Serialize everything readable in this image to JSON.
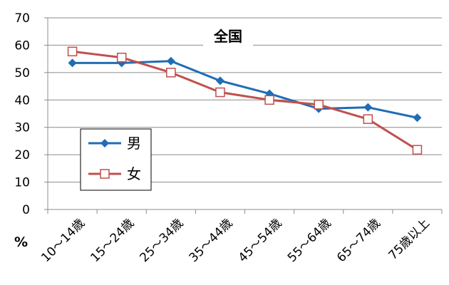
{
  "chart_data": {
    "type": "line",
    "title": "全国",
    "ylabel": "%",
    "xlabel": "",
    "categories": [
      "10～14歳",
      "15～24歳",
      "25～34歳",
      "35～44歳",
      "45～54歳",
      "55～64歳",
      "65～74歳",
      "75歳以上"
    ],
    "ylim": [
      0,
      70
    ],
    "yticks": [
      0,
      10,
      20,
      30,
      40,
      50,
      60,
      70
    ],
    "grid": true,
    "legend_position": "left",
    "series": [
      {
        "name": "男",
        "color": "#1f6db5",
        "marker": "filled-diamond",
        "values": [
          53.5,
          53.5,
          54.2,
          47.0,
          42.3,
          36.8,
          37.3,
          33.5
        ]
      },
      {
        "name": "女",
        "color": "#c0504d",
        "marker": "open-square",
        "values": [
          57.7,
          55.5,
          50.0,
          42.8,
          40.0,
          38.3,
          33.0,
          21.8
        ]
      }
    ]
  }
}
